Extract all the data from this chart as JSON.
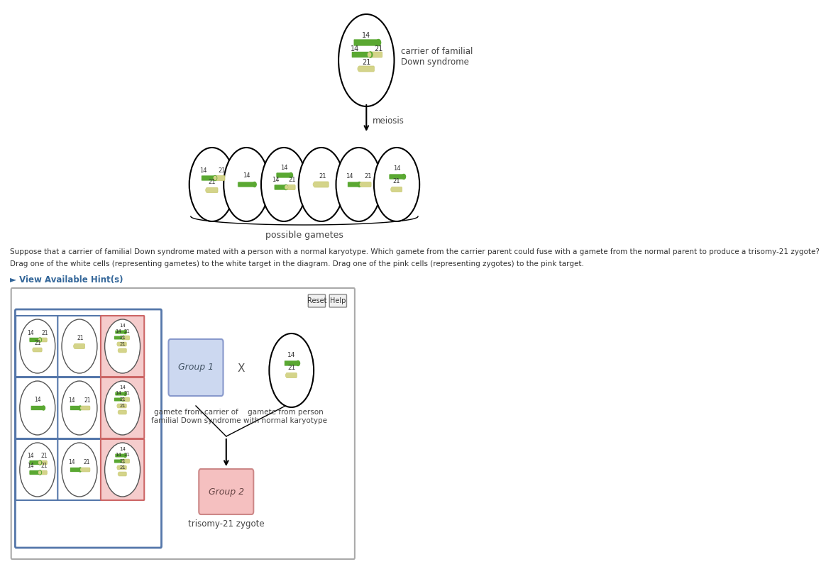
{
  "bg_color": "#ffffff",
  "green_color": "#5aa832",
  "yellow_color": "#d4d48a",
  "title_text": "carrier of familial\nDown syndrome",
  "meiosis_text": "meiosis",
  "possible_gametes_text": "possible gametes",
  "question_text1": "Suppose that a carrier of familial Down syndrome mated with a person with a normal karyotype. Which gamete from the carrier parent could fuse with a gamete from the normal parent to produce a trisomy-21 zygote?",
  "question_text2": "Drag one of the white cells (representing gametes) to the white target in the diagram. Drag one of the pink cells (representing zygotes) to the pink target.",
  "hint_text": "► View Available Hint(s)",
  "group1_text": "Group 1",
  "group2_text": "Group 2",
  "gamete_carrier_text": "gamete from carrier of\nfamilial Down syndrome",
  "gamete_normal_text": "gamete from person\nwith normal karyotype",
  "trisomy_text": "trisomy-21 zygote",
  "reset_text": "Reset",
  "help_text": "Help",
  "x_text": "X"
}
